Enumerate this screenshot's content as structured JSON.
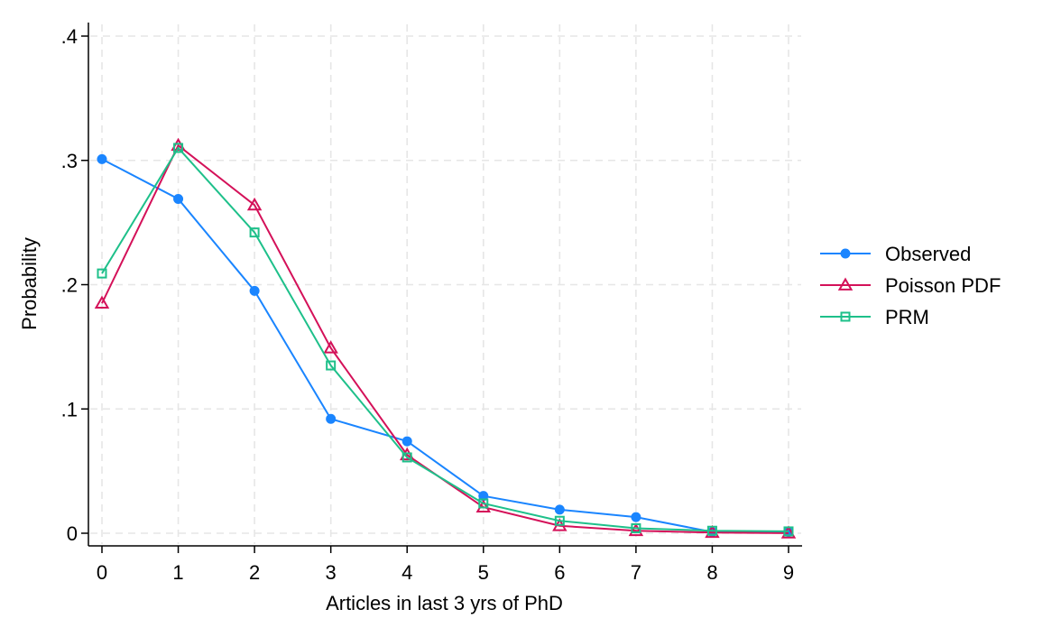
{
  "chart_data": {
    "type": "line",
    "title": "",
    "xlabel": "Articles in last 3 yrs of PhD",
    "ylabel": "Probability",
    "x": [
      0,
      1,
      2,
      3,
      4,
      5,
      6,
      7,
      8,
      9
    ],
    "xlim": [
      0,
      9
    ],
    "ylim": [
      0,
      0.4
    ],
    "xticks": [
      0,
      1,
      2,
      3,
      4,
      5,
      6,
      7,
      8,
      9
    ],
    "xtick_labels": [
      "0",
      "1",
      "2",
      "3",
      "4",
      "5",
      "6",
      "7",
      "8",
      "9"
    ],
    "yticks": [
      0,
      0.1,
      0.2,
      0.3,
      0.4
    ],
    "ytick_labels": [
      "0",
      ".1",
      ".2",
      ".3",
      ".4"
    ],
    "grid": true,
    "legend_position": "right",
    "series": [
      {
        "name": "Observed",
        "color": "#1a85ff",
        "marker": "circle",
        "values": [
          0.301,
          0.269,
          0.195,
          0.092,
          0.074,
          0.03,
          0.019,
          0.013,
          0.001,
          0.001
        ]
      },
      {
        "name": "Poisson PDF",
        "color": "#d41159",
        "marker": "triangle",
        "values": [
          0.185,
          0.312,
          0.264,
          0.149,
          0.063,
          0.021,
          0.006,
          0.002,
          0.0005,
          0.0001
        ]
      },
      {
        "name": "PRM",
        "color": "#1ec08a",
        "marker": "square",
        "values": [
          0.209,
          0.31,
          0.242,
          0.135,
          0.061,
          0.024,
          0.01,
          0.004,
          0.002,
          0.0015
        ]
      }
    ]
  }
}
